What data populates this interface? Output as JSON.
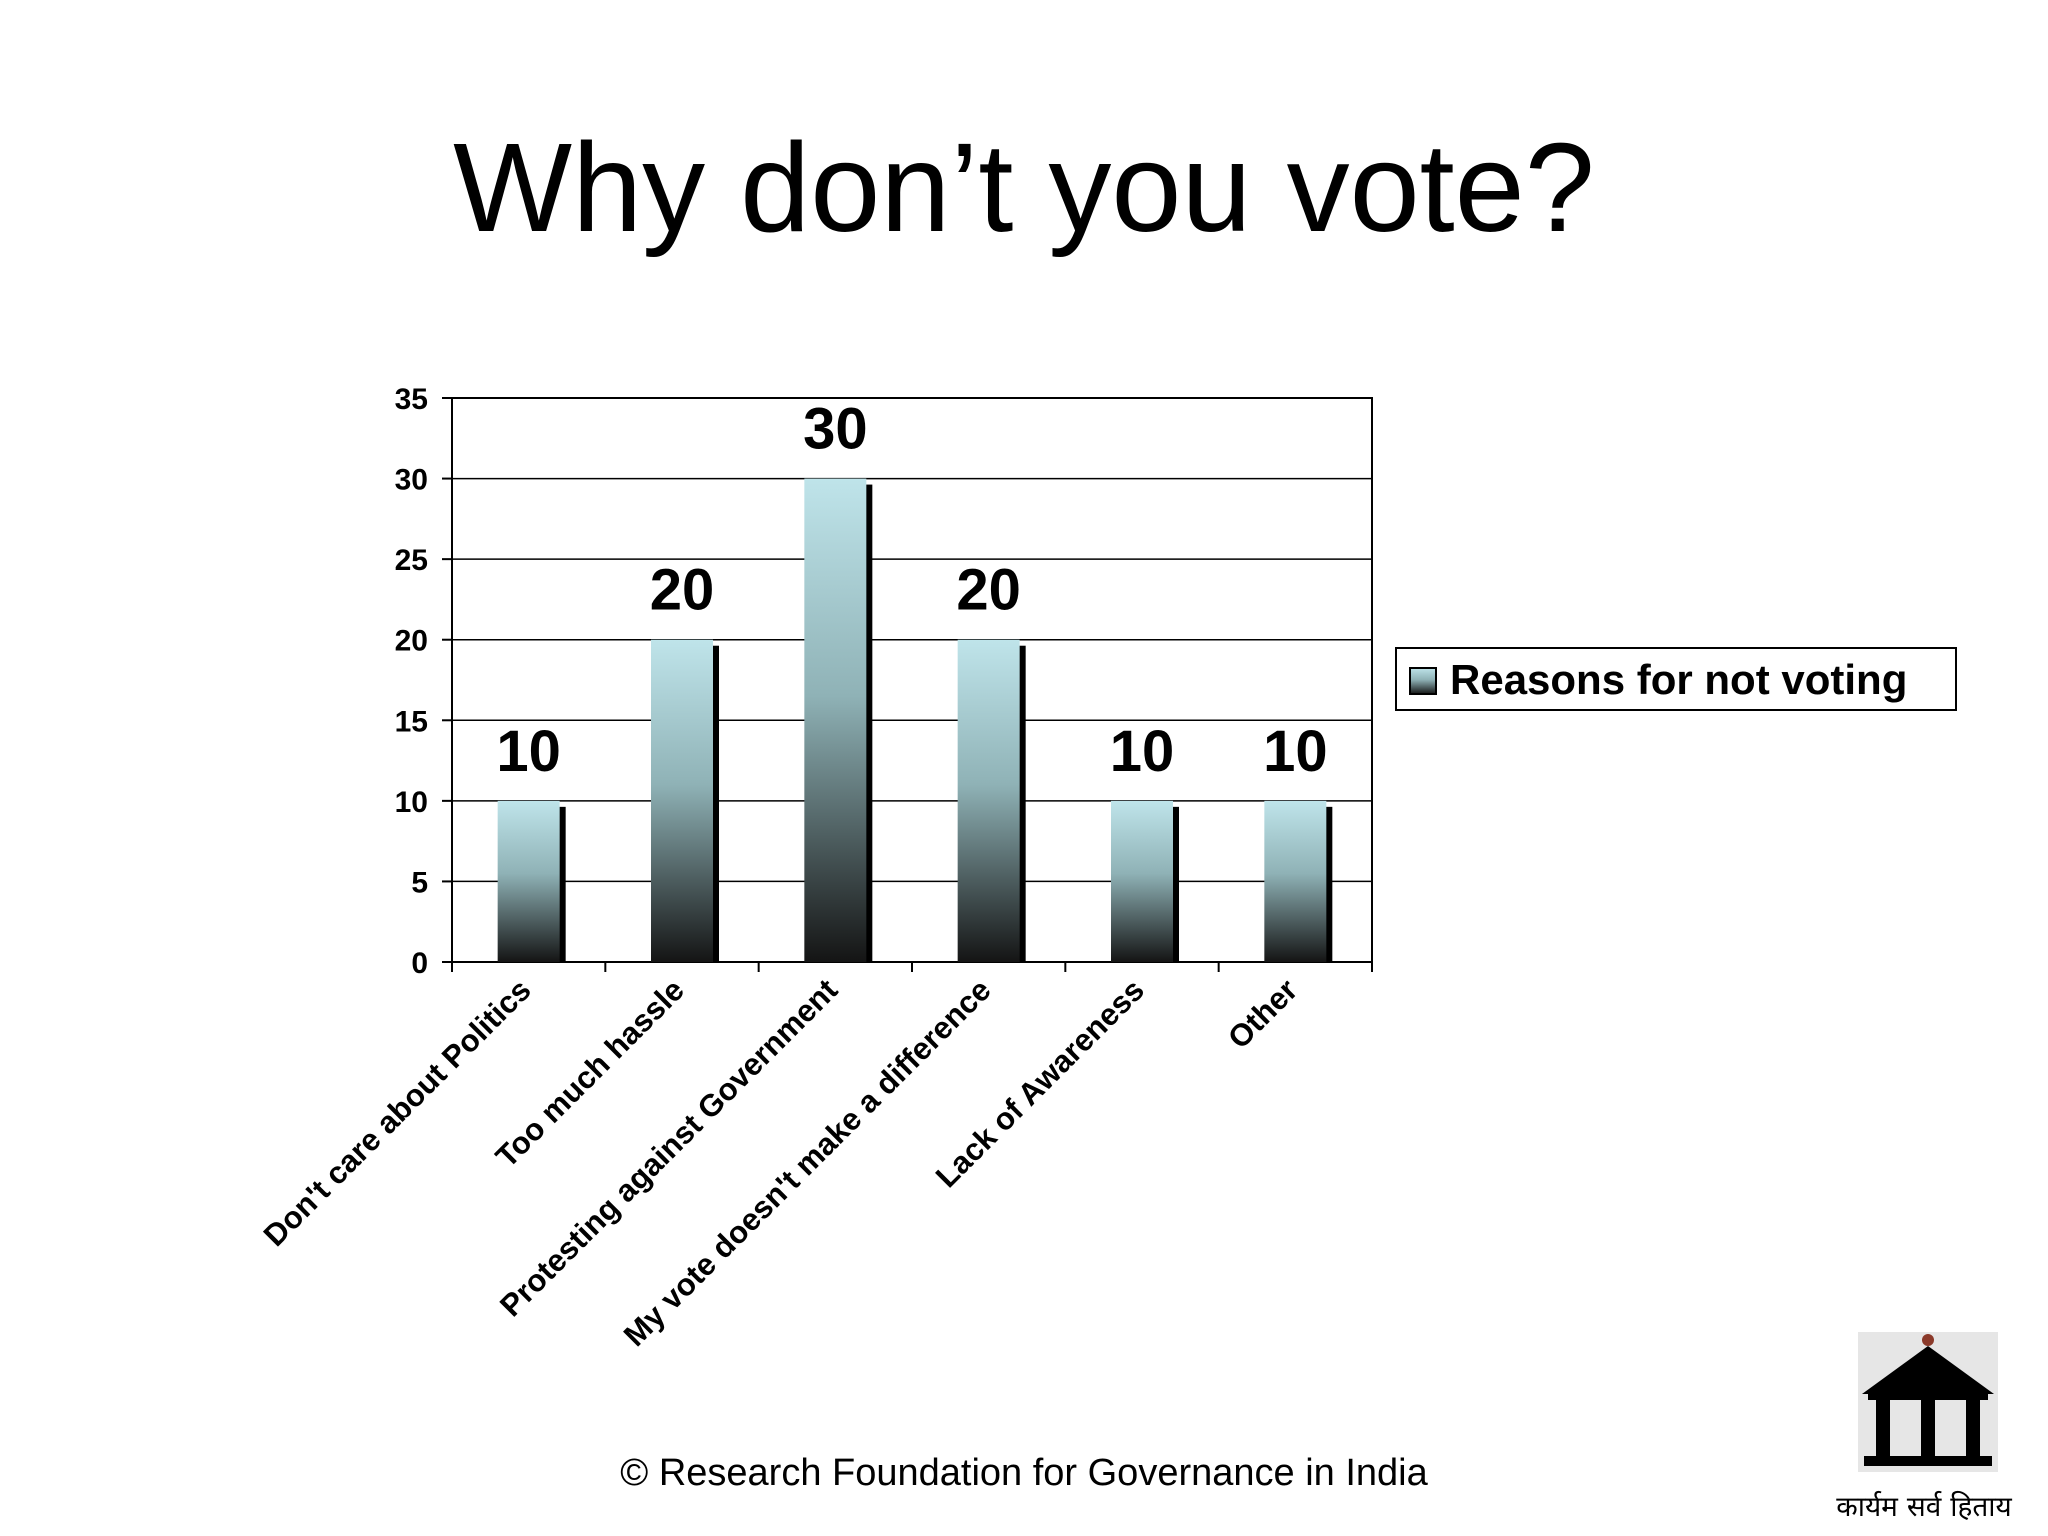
{
  "slide": {
    "title": "Why don’t you vote?",
    "footer": "© Research Foundation for Governance in India",
    "motto": "कार्यम सर्व हिताय",
    "logo_icon": "pillared-temple-icon"
  },
  "chart_data": {
    "type": "bar",
    "title": "",
    "xlabel": "",
    "ylabel": "",
    "categories": [
      "Don't care about Politics",
      "Too much hassle",
      "Protesting against Government",
      "My vote doesn't make a difference",
      "Lack of Awareness",
      "Other"
    ],
    "series": [
      {
        "name": "Reasons for not voting",
        "values": [
          10,
          20,
          30,
          20,
          10,
          10
        ]
      }
    ],
    "data_labels": [
      "10",
      "20",
      "30",
      "20",
      "10",
      "10"
    ],
    "ylim": [
      0,
      35
    ],
    "yticks": [
      0,
      5,
      10,
      15,
      20,
      25,
      30,
      35
    ],
    "grid": true,
    "legend": "right",
    "colors": {
      "bar_top": "#bfe4ea",
      "bar_bottom": "#141414",
      "shadow": "#000000"
    }
  }
}
